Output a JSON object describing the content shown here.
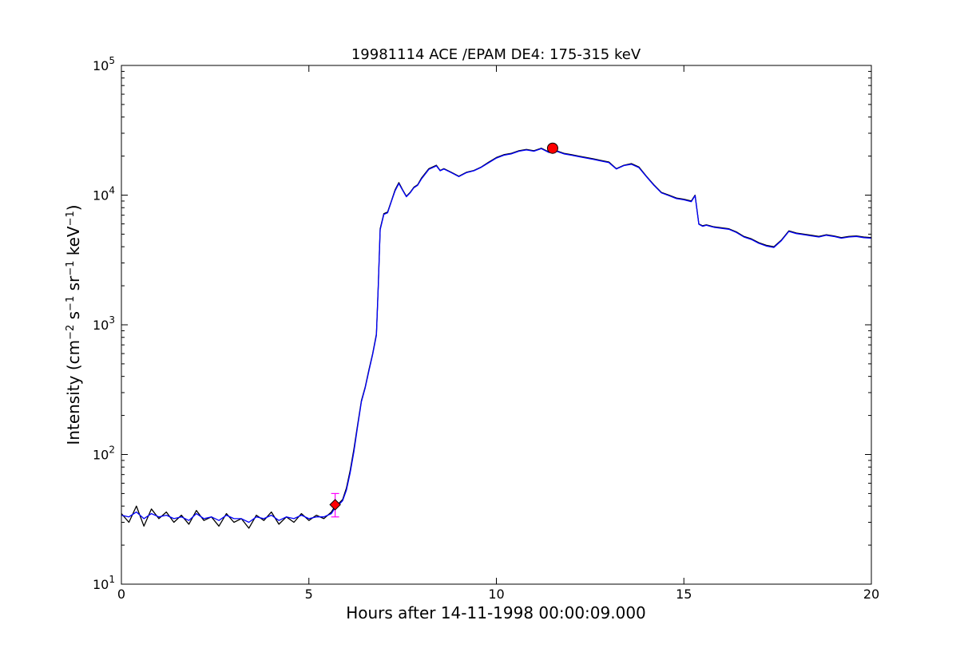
{
  "chart_data": {
    "type": "line",
    "title": "19981114 ACE /EPAM DE4: 175-315 keV",
    "xlabel": "Hours after 14-11-1998 00:00:09.000",
    "ylabel": {
      "prefix": "Intensity (cm",
      "sup1": "−2",
      "mid1": " s",
      "sup2": "−1",
      "mid2": " sr",
      "sup3": "−1",
      "mid3": " keV",
      "sup4": "−1",
      "suffix": ")"
    },
    "xlim": [
      0,
      20
    ],
    "ylim": [
      10,
      100000
    ],
    "yscale": "log",
    "grid": false,
    "x_ticks": [
      {
        "value": 0,
        "label": "0"
      },
      {
        "value": 5,
        "label": "5"
      },
      {
        "value": 10,
        "label": "10"
      },
      {
        "value": 15,
        "label": "15"
      },
      {
        "value": 20,
        "label": "20"
      }
    ],
    "y_ticks": [
      {
        "value": 10,
        "base": "10",
        "exp": "1"
      },
      {
        "value": 100,
        "base": "10",
        "exp": "2"
      },
      {
        "value": 1000,
        "base": "10",
        "exp": "3"
      },
      {
        "value": 10000,
        "base": "10",
        "exp": "4"
      },
      {
        "value": 100000,
        "base": "10",
        "exp": "5"
      }
    ],
    "series": [
      {
        "color": "#000000",
        "x": [
          0.0,
          0.2,
          0.4,
          0.6,
          0.8,
          1.0,
          1.2,
          1.4,
          1.6,
          1.8,
          2.0,
          2.2,
          2.4,
          2.6,
          2.8,
          3.0,
          3.2,
          3.4,
          3.6,
          3.8,
          4.0,
          4.2,
          4.4,
          4.6,
          4.8,
          5.0,
          5.2,
          5.4,
          5.6,
          5.7,
          5.8,
          5.9,
          6.0,
          6.1,
          6.2,
          6.3,
          6.4,
          6.5,
          6.6,
          6.7,
          6.8,
          6.85,
          6.9,
          7.0,
          7.1,
          7.2,
          7.3,
          7.4,
          7.5,
          7.6,
          7.7,
          7.8,
          7.9,
          8.0,
          8.2,
          8.4,
          8.5,
          8.6,
          8.8,
          9.0,
          9.2,
          9.4,
          9.6,
          9.8,
          10.0,
          10.2,
          10.4,
          10.6,
          10.8,
          11.0,
          11.2,
          11.4,
          11.6,
          11.8,
          12.0,
          12.2,
          12.4,
          12.6,
          12.8,
          13.0,
          13.2,
          13.4,
          13.6,
          13.8,
          14.0,
          14.2,
          14.4,
          14.6,
          14.8,
          15.0,
          15.2,
          15.3,
          15.4,
          15.5,
          15.6,
          15.8,
          16.0,
          16.2,
          16.4,
          16.6,
          16.8,
          17.0,
          17.2,
          17.4,
          17.6,
          17.8,
          18.0,
          18.2,
          18.4,
          18.6,
          18.8,
          19.0,
          19.2,
          19.4,
          19.6,
          19.8,
          20.0
        ],
        "y": [
          35,
          30,
          40,
          28,
          38,
          32,
          36,
          30,
          34,
          29,
          37,
          31,
          33,
          28,
          35,
          30,
          32,
          27,
          34,
          31,
          36,
          29,
          33,
          30,
          35,
          31,
          34,
          32,
          36,
          40,
          42,
          45,
          55,
          75,
          110,
          170,
          260,
          330,
          450,
          600,
          850,
          2000,
          5500,
          7200,
          7400,
          9000,
          11000,
          12500,
          11000,
          9800,
          10500,
          11500,
          12000,
          13500,
          16000,
          17000,
          15500,
          16000,
          15000,
          14000,
          15000,
          15500,
          16500,
          18000,
          19500,
          20500,
          21000,
          22000,
          22500,
          22000,
          23000,
          21500,
          22000,
          21000,
          20500,
          20000,
          19500,
          19000,
          18500,
          18000,
          16000,
          17000,
          17500,
          16500,
          14000,
          12000,
          10500,
          10000,
          9500,
          9300,
          9000,
          10000,
          6000,
          5800,
          5900,
          5700,
          5600,
          5500,
          5200,
          4800,
          4600,
          4300,
          4100,
          4000,
          4500,
          5300,
          5100,
          5000,
          4900,
          4800,
          4950,
          4850,
          4700,
          4800,
          4850,
          4750,
          4700
        ]
      },
      {
        "color": "#0000ff",
        "x": [
          0.0,
          0.2,
          0.4,
          0.6,
          0.8,
          1.0,
          1.2,
          1.4,
          1.6,
          1.8,
          2.0,
          2.2,
          2.4,
          2.6,
          2.8,
          3.0,
          3.2,
          3.4,
          3.6,
          3.8,
          4.0,
          4.2,
          4.4,
          4.6,
          4.8,
          5.0,
          5.2,
          5.4,
          5.6,
          5.7,
          5.8,
          5.9,
          6.0,
          6.1,
          6.2,
          6.3,
          6.4,
          6.5,
          6.6,
          6.7,
          6.8,
          6.85,
          6.9,
          7.0,
          7.1,
          7.2,
          7.3,
          7.4,
          7.5,
          7.6,
          7.7,
          7.8,
          7.9,
          8.0,
          8.2,
          8.4,
          8.5,
          8.6,
          8.8,
          9.0,
          9.2,
          9.4,
          9.6,
          9.8,
          10.0,
          10.2,
          10.4,
          10.6,
          10.8,
          11.0,
          11.2,
          11.4,
          11.6,
          11.8,
          12.0,
          12.2,
          12.4,
          12.6,
          12.8,
          13.0,
          13.2,
          13.4,
          13.6,
          13.8,
          14.0,
          14.2,
          14.4,
          14.6,
          14.8,
          15.0,
          15.2,
          15.3,
          15.4,
          15.5,
          15.6,
          15.8,
          16.0,
          16.2,
          16.4,
          16.6,
          16.8,
          17.0,
          17.2,
          17.4,
          17.6,
          17.8,
          18.0,
          18.2,
          18.4,
          18.6,
          18.8,
          19.0,
          19.2,
          19.4,
          19.6,
          19.8,
          20.0
        ],
        "y": [
          34,
          33,
          36,
          32,
          35,
          33,
          34,
          32,
          33,
          31,
          35,
          32,
          33,
          31,
          34,
          32,
          32,
          30,
          33,
          32,
          34,
          31,
          33,
          32,
          34,
          32,
          33,
          33,
          35,
          39,
          41,
          44,
          53,
          72,
          105,
          165,
          255,
          325,
          440,
          590,
          830,
          1950,
          5400,
          7100,
          7300,
          8900,
          10800,
          12300,
          10900,
          9700,
          10400,
          11400,
          11900,
          13300,
          15800,
          16800,
          15400,
          15900,
          14900,
          13900,
          14900,
          15400,
          16400,
          17800,
          19300,
          20300,
          20800,
          21800,
          22300,
          21800,
          22800,
          21300,
          21800,
          20800,
          20300,
          19800,
          19300,
          18800,
          18300,
          17800,
          15900,
          16900,
          17300,
          16300,
          13900,
          11900,
          10400,
          9900,
          9400,
          9200,
          8900,
          9900,
          5950,
          5750,
          5850,
          5650,
          5550,
          5450,
          5150,
          4750,
          4550,
          4250,
          4050,
          3950,
          4450,
          5250,
          5050,
          4950,
          4850,
          4750,
          4900,
          4800,
          4650,
          4750,
          4800,
          4700,
          4650
        ]
      }
    ],
    "markers": [
      {
        "type": "circle",
        "color": "#ff0000",
        "x": 11.5,
        "y": 23000
      },
      {
        "type": "diamond",
        "color": "#ff0000",
        "x": 5.7,
        "y": 41
      },
      {
        "type": "errorbar",
        "color": "#ff00ff",
        "x": 5.7,
        "y_low": 33,
        "y_high": 50
      }
    ]
  }
}
